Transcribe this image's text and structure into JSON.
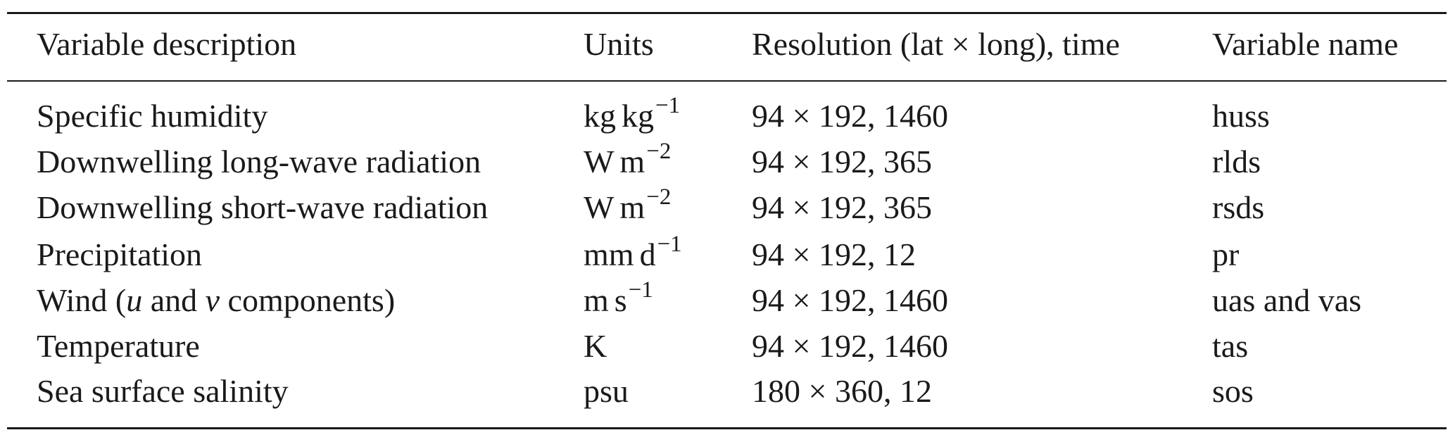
{
  "table": {
    "headers": {
      "description": "Variable description",
      "units": "Units",
      "resolution": "Resolution (lat × long), time",
      "name": "Variable name"
    },
    "rows": [
      {
        "description": "Specific humidity",
        "units": {
          "a": "kg",
          "b": "kg",
          "sup": "−1"
        },
        "resolution": "94 × 192, 1460",
        "name": "huss"
      },
      {
        "description": "Downwelling long-wave radiation",
        "units": {
          "a": "W",
          "b": "m",
          "sup": "−2"
        },
        "resolution": "94 × 192, 365",
        "name": "rlds"
      },
      {
        "description": "Downwelling short-wave radiation",
        "units": {
          "a": "W",
          "b": "m",
          "sup": "−2"
        },
        "resolution": "94 × 192, 365",
        "name": "rsds"
      },
      {
        "description": "Precipitation",
        "units": {
          "a": "mm",
          "b": "d",
          "sup": "−1"
        },
        "resolution": "94 × 192, 12",
        "name": "pr"
      },
      {
        "description_parts": [
          "Wind (",
          "u",
          " and ",
          "v",
          " components)"
        ],
        "units": {
          "a": "m",
          "b": "s",
          "sup": "−1"
        },
        "resolution": "94 × 192, 1460",
        "name": "uas and vas"
      },
      {
        "description": "Temperature",
        "units": {
          "a": "K"
        },
        "resolution": "94 × 192, 1460",
        "name": "tas"
      },
      {
        "description": "Sea surface salinity",
        "units": {
          "a": "psu"
        },
        "resolution": "180 × 360, 12",
        "name": "sos"
      }
    ]
  }
}
